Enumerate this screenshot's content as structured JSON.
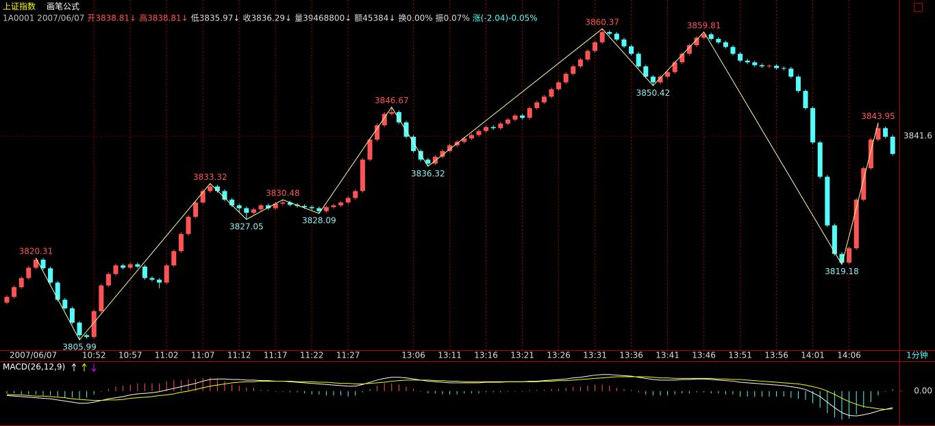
{
  "chart_data": [
    {
      "type": "candlestick",
      "title": "上证指数",
      "subtitle": "画笔公式",
      "info": [
        {
          "text": "1A0001 2007/06/07",
          "color": "#c0c0c0"
        },
        {
          "text": "开3838.81↓",
          "color": "#ff5454"
        },
        {
          "text": "高3838.81↓",
          "color": "#ff5454"
        },
        {
          "text": "低3835.97↓",
          "color": "#dcdcdc"
        },
        {
          "text": "收3836.29↓",
          "color": "#dcdcdc"
        },
        {
          "text": "量39468800↓",
          "color": "#dcdcdc"
        },
        {
          "text": "额45384↓",
          "color": "#dcdcdc"
        },
        {
          "text": "换0.00%",
          "color": "#dcdcdc"
        },
        {
          "text": "振0.07%",
          "color": "#dcdcdc"
        },
        {
          "text": "涨(-2.04)-0.05%",
          "color": "#54fcfc"
        }
      ],
      "categories": [
        "2007/06/07",
        null,
        null,
        null,
        null,
        null,
        null,
        null,
        null,
        null,
        null,
        null,
        "10:52",
        null,
        null,
        null,
        null,
        "10:57",
        null,
        null,
        null,
        null,
        "11:02",
        null,
        null,
        null,
        null,
        "11:07",
        null,
        null,
        null,
        null,
        "11:12",
        null,
        null,
        null,
        null,
        "11:17",
        null,
        null,
        null,
        null,
        "11:22",
        null,
        null,
        null,
        null,
        "11:27",
        null,
        null,
        null,
        null,
        null,
        null,
        null,
        null,
        "13:06",
        null,
        null,
        null,
        null,
        "13:11",
        null,
        null,
        null,
        null,
        "13:16",
        null,
        null,
        null,
        null,
        "13:21",
        null,
        null,
        null,
        null,
        "13:26",
        null,
        null,
        null,
        null,
        "13:31",
        null,
        null,
        null,
        null,
        "13:36",
        null,
        null,
        null,
        null,
        "13:41",
        null,
        null,
        null,
        null,
        "13:46",
        null,
        null,
        null,
        null,
        "13:51",
        null,
        null,
        null,
        null,
        "13:56",
        null,
        null,
        null,
        null,
        "14:01",
        null,
        null,
        null,
        null,
        "14:06",
        null,
        null,
        null,
        null,
        null,
        null
      ],
      "open": [
        3812.5,
        3813.5,
        3815.2,
        3816.8,
        3818.6,
        3820.0,
        3818.5,
        3816.0,
        3813.0,
        3811.5,
        3809.0,
        3806.8,
        3806.5,
        3811.0,
        3815.5,
        3817.5,
        3819.0,
        3818.6,
        3819.2,
        3818.8,
        3816.8,
        3816.5,
        3816.0,
        3819.0,
        3821.5,
        3824.5,
        3827.5,
        3830.0,
        3832.0,
        3832.8,
        3832.0,
        3830.5,
        3829.5,
        3829.0,
        3828.2,
        3828.8,
        3829.5,
        3829.0,
        3829.8,
        3830.0,
        3829.6,
        3829.4,
        3829.2,
        3829.0,
        3828.5,
        3829.2,
        3829.5,
        3830.0,
        3830.8,
        3832.0,
        3837.5,
        3841.0,
        3843.5,
        3845.5,
        3845.8,
        3844.0,
        3841.5,
        3839.0,
        3837.5,
        3836.8,
        3838.0,
        3839.0,
        3840.0,
        3840.6,
        3841.2,
        3841.8,
        3842.5,
        3843.2,
        3843.0,
        3843.8,
        3844.5,
        3845.2,
        3844.8,
        3846.5,
        3847.5,
        3848.5,
        3849.8,
        3851.0,
        3852.5,
        3853.8,
        3855.0,
        3856.5,
        3858.0,
        3859.8,
        3859.5,
        3858.5,
        3857.3,
        3856.0,
        3853.8,
        3852.0,
        3851.0,
        3852.0,
        3852.8,
        3854.5,
        3856.0,
        3857.5,
        3858.8,
        3859.4,
        3858.6,
        3858.0,
        3857.2,
        3856.0,
        3854.8,
        3854.5,
        3854.0,
        3853.8,
        3853.9,
        3853.5,
        3853.4,
        3852.0,
        3849.5,
        3846.5,
        3840.5,
        3834.5,
        3826.0,
        3821.0,
        3819.5,
        3822.0,
        3830.5,
        3836.0,
        3841.0,
        3843.0,
        3841.5
      ],
      "high": [
        3813.8,
        3815.5,
        3817.1,
        3818.9,
        3820.31,
        3820.3,
        3818.8,
        3816.3,
        3813.3,
        3811.8,
        3809.3,
        3807.1,
        3811.3,
        3815.8,
        3817.8,
        3819.3,
        3819.3,
        3819.5,
        3819.5,
        3819.1,
        3817.1,
        3816.8,
        3819.3,
        3821.8,
        3824.8,
        3827.8,
        3830.3,
        3832.3,
        3833.32,
        3833.1,
        3832.3,
        3830.8,
        3829.8,
        3829.3,
        3829.1,
        3829.8,
        3829.8,
        3830.1,
        3830.48,
        3830.3,
        3829.9,
        3829.7,
        3829.5,
        3829.3,
        3829.5,
        3829.8,
        3830.3,
        3831.1,
        3832.3,
        3837.8,
        3841.3,
        3843.8,
        3845.8,
        3846.67,
        3846.1,
        3844.3,
        3841.8,
        3839.3,
        3837.8,
        3838.3,
        3839.3,
        3840.3,
        3840.9,
        3841.5,
        3842.1,
        3842.8,
        3843.5,
        3843.5,
        3844.1,
        3844.8,
        3845.5,
        3845.5,
        3846.8,
        3847.8,
        3848.8,
        3850.1,
        3851.3,
        3852.8,
        3854.1,
        3855.3,
        3856.8,
        3858.3,
        3860.37,
        3860.1,
        3859.8,
        3858.8,
        3857.6,
        3856.3,
        3854.1,
        3852.3,
        3852.3,
        3853.1,
        3854.8,
        3856.3,
        3857.8,
        3859.1,
        3859.81,
        3859.7,
        3858.9,
        3858.3,
        3857.5,
        3856.3,
        3855.1,
        3854.8,
        3854.3,
        3854.2,
        3854.2,
        3853.8,
        3853.7,
        3852.3,
        3849.8,
        3846.8,
        3840.8,
        3834.8,
        3826.3,
        3821.3,
        3822.3,
        3830.8,
        3836.3,
        3841.3,
        3843.95,
        3843.3,
        3841.8
      ],
      "low": [
        3812.2,
        3813.2,
        3814.9,
        3816.5,
        3818.3,
        3818.2,
        3815.7,
        3812.7,
        3811.2,
        3808.7,
        3805.99,
        3806.2,
        3806.2,
        3810.7,
        3815.2,
        3817.2,
        3818.3,
        3818.3,
        3818.5,
        3816.5,
        3816.2,
        3815.0,
        3815.7,
        3818.7,
        3821.2,
        3824.2,
        3827.2,
        3829.7,
        3831.7,
        3831.7,
        3830.2,
        3829.2,
        3828.3,
        3827.05,
        3827.9,
        3828.5,
        3828.7,
        3828.7,
        3829.5,
        3829.3,
        3829.1,
        3828.9,
        3828.7,
        3828.09,
        3828.2,
        3828.9,
        3829.2,
        3829.7,
        3830.5,
        3831.7,
        3837.2,
        3840.7,
        3843.2,
        3845.2,
        3843.7,
        3841.2,
        3838.7,
        3837.2,
        3836.32,
        3836.5,
        3837.7,
        3838.7,
        3839.7,
        3840.3,
        3840.9,
        3841.5,
        3842.2,
        3842.7,
        3842.7,
        3843.5,
        3844.2,
        3844.5,
        3844.5,
        3846.2,
        3847.2,
        3848.2,
        3849.5,
        3850.7,
        3852.2,
        3853.5,
        3854.7,
        3856.2,
        3857.7,
        3859.2,
        3858.2,
        3857.0,
        3855.7,
        3853.5,
        3851.7,
        3850.42,
        3850.7,
        3851.7,
        3852.5,
        3854.2,
        3855.7,
        3857.2,
        3858.5,
        3858.3,
        3857.7,
        3856.9,
        3855.7,
        3854.5,
        3854.2,
        3853.7,
        3853.5,
        3853.5,
        3853.2,
        3853.1,
        3851.7,
        3849.2,
        3846.2,
        3840.2,
        3834.2,
        3825.7,
        3820.7,
        3819.18,
        3819.2,
        3821.7,
        3830.2,
        3835.7,
        3840.7,
        3841.2,
        3838.2
      ],
      "close": [
        3813.5,
        3815.2,
        3816.8,
        3818.6,
        3820.0,
        3818.5,
        3816.0,
        3813.0,
        3811.5,
        3809.0,
        3806.8,
        3806.5,
        3811.0,
        3815.5,
        3817.5,
        3819.0,
        3818.6,
        3819.2,
        3818.8,
        3816.8,
        3816.5,
        3816.0,
        3819.0,
        3821.5,
        3824.5,
        3827.5,
        3830.0,
        3832.0,
        3832.8,
        3832.0,
        3830.5,
        3829.5,
        3829.0,
        3828.2,
        3828.8,
        3829.5,
        3829.0,
        3829.8,
        3830.0,
        3829.6,
        3829.4,
        3829.2,
        3829.0,
        3828.5,
        3829.2,
        3829.5,
        3830.0,
        3830.8,
        3832.0,
        3837.5,
        3841.0,
        3843.5,
        3845.5,
        3845.8,
        3844.0,
        3841.5,
        3839.0,
        3837.5,
        3836.8,
        3838.0,
        3839.0,
        3840.0,
        3840.6,
        3841.2,
        3841.8,
        3842.5,
        3843.2,
        3843.0,
        3843.8,
        3844.5,
        3845.2,
        3844.8,
        3846.5,
        3847.5,
        3848.5,
        3849.8,
        3851.0,
        3852.5,
        3853.8,
        3855.0,
        3856.5,
        3858.0,
        3859.8,
        3859.5,
        3858.5,
        3857.3,
        3856.0,
        3853.8,
        3852.0,
        3851.0,
        3852.0,
        3852.8,
        3854.5,
        3856.0,
        3857.5,
        3858.8,
        3859.4,
        3858.6,
        3858.0,
        3857.2,
        3856.0,
        3854.8,
        3854.5,
        3854.0,
        3853.8,
        3853.9,
        3853.5,
        3853.4,
        3852.0,
        3849.5,
        3846.5,
        3840.5,
        3834.5,
        3826.0,
        3821.0,
        3819.5,
        3822.0,
        3830.5,
        3836.0,
        3841.0,
        3843.0,
        3841.5,
        3838.5
      ],
      "up_color": "#ff5454",
      "down_color": "#54fcfc",
      "ylim": [
        3804.2,
        3865.4
      ],
      "yticks": [
        3841.6
      ],
      "pivots": {
        "index": [
          4,
          10,
          28,
          33,
          38,
          43,
          53,
          58,
          82,
          89,
          96,
          115,
          120
        ],
        "values": [
          3820.31,
          3805.99,
          3833.32,
          3827.05,
          3830.48,
          3828.09,
          3846.67,
          3836.32,
          3860.37,
          3850.42,
          3859.81,
          3819.18,
          3843.95
        ],
        "line_color": "#ffff99",
        "high_color": "#ff5454",
        "low_color": "#8cf0f0"
      },
      "period": "1分钟"
    },
    {
      "type": "macd",
      "title": "MACD(26,12,9)",
      "lines": [
        {
          "color": "#ffffff",
          "values": [
            -0.8,
            -0.9,
            -1.0,
            -1.1,
            -1.2,
            -1.3,
            -1.4,
            -1.6,
            -1.8,
            -2.0,
            -2.2,
            -2.2,
            -2.0,
            -1.7,
            -1.4,
            -1.2,
            -1.0,
            -0.7,
            -0.5,
            -0.4,
            -0.3,
            -0.1,
            0.2,
            0.5,
            0.8,
            1.1,
            1.4,
            1.8,
            2.1,
            2.2,
            2.2,
            2.1,
            2.1,
            2.0,
            2.0,
            1.9,
            1.9,
            1.8,
            1.8,
            1.7,
            1.6,
            1.5,
            1.4,
            1.3,
            1.2,
            1.1,
            1.0,
            0.9,
            0.9,
            1.2,
            1.6,
            2.0,
            2.3,
            2.5,
            2.5,
            2.4,
            2.2,
            2.0,
            1.8,
            1.7,
            1.6,
            1.5,
            1.5,
            1.5,
            1.5,
            1.5,
            1.6,
            1.6,
            1.6,
            1.7,
            1.7,
            1.7,
            1.8,
            1.8,
            1.9,
            2.0,
            2.1,
            2.2,
            2.4,
            2.5,
            2.7,
            2.9,
            3.0,
            3.0,
            2.9,
            2.8,
            2.7,
            2.5,
            2.3,
            2.1,
            2.0,
            2.0,
            2.0,
            2.1,
            2.1,
            2.2,
            2.2,
            2.1,
            2.0,
            1.9,
            1.8,
            1.6,
            1.5,
            1.4,
            1.3,
            1.2,
            1.1,
            1.0,
            0.8,
            0.6,
            0.3,
            -0.3,
            -1.0,
            -2.0,
            -3.0,
            -3.9,
            -4.4,
            -4.5,
            -4.3,
            -4.0,
            -3.6,
            -3.3,
            -3.0
          ]
        },
        {
          "color": "#ffff00",
          "values": [
            -0.6,
            -0.7,
            -0.7,
            -0.8,
            -0.9,
            -0.9,
            -1.0,
            -1.1,
            -1.2,
            -1.4,
            -1.5,
            -1.6,
            -1.7,
            -1.7,
            -1.6,
            -1.6,
            -1.5,
            -1.3,
            -1.2,
            -1.1,
            -1.0,
            -0.8,
            -0.7,
            -0.5,
            -0.2,
            0.0,
            0.3,
            0.6,
            0.9,
            1.1,
            1.3,
            1.5,
            1.6,
            1.7,
            1.7,
            1.8,
            1.8,
            1.8,
            1.8,
            1.8,
            1.7,
            1.7,
            1.7,
            1.6,
            1.6,
            1.5,
            1.4,
            1.4,
            1.3,
            1.3,
            1.4,
            1.5,
            1.6,
            1.8,
            1.9,
            2.0,
            2.0,
            2.0,
            2.0,
            1.9,
            1.9,
            1.8,
            1.8,
            1.7,
            1.7,
            1.7,
            1.7,
            1.7,
            1.7,
            1.7,
            1.7,
            1.7,
            1.7,
            1.7,
            1.8,
            1.8,
            1.9,
            1.9,
            2.0,
            2.1,
            2.2,
            2.3,
            2.4,
            2.5,
            2.6,
            2.6,
            2.6,
            2.6,
            2.6,
            2.5,
            2.4,
            2.4,
            2.3,
            2.3,
            2.3,
            2.3,
            2.3,
            2.3,
            2.2,
            2.2,
            2.1,
            2.1,
            2.0,
            1.9,
            1.8,
            1.7,
            1.6,
            1.5,
            1.4,
            1.3,
            1.1,
            0.8,
            0.5,
            0.0,
            -0.6,
            -1.3,
            -1.9,
            -2.4,
            -2.8,
            -3.0,
            -3.2,
            -3.3,
            -3.2
          ]
        }
      ],
      "bars": {
        "up_color": "#ff5454",
        "down_color": "#54fcfc",
        "values": [
          -0.4,
          -0.4,
          -0.6,
          -0.6,
          -0.6,
          -0.8,
          -0.8,
          -1.0,
          -1.2,
          -1.2,
          -1.4,
          -1.2,
          -0.6,
          0.0,
          0.4,
          0.8,
          1.0,
          1.2,
          1.4,
          1.4,
          1.4,
          1.4,
          1.8,
          2.0,
          2.0,
          2.2,
          2.2,
          2.4,
          2.4,
          2.2,
          1.8,
          1.2,
          1.0,
          0.6,
          0.6,
          0.2,
          0.2,
          0.0,
          0.0,
          -0.2,
          -0.2,
          -0.4,
          -0.6,
          -0.6,
          -0.8,
          -0.8,
          -0.8,
          -1.0,
          -0.8,
          -0.2,
          0.4,
          1.0,
          1.4,
          1.4,
          1.2,
          0.8,
          0.4,
          0.0,
          -0.4,
          -0.4,
          -0.6,
          -0.6,
          -0.6,
          -0.4,
          -0.4,
          -0.4,
          -0.2,
          -0.2,
          -0.2,
          0.0,
          0.0,
          0.0,
          0.2,
          0.2,
          0.2,
          0.4,
          0.4,
          0.6,
          0.8,
          0.8,
          1.0,
          1.2,
          1.2,
          1.0,
          0.6,
          0.4,
          0.2,
          -0.2,
          -0.6,
          -0.8,
          -0.8,
          -0.8,
          -0.6,
          -0.4,
          -0.4,
          -0.2,
          -0.2,
          -0.4,
          -0.4,
          -0.6,
          -0.6,
          -1.0,
          -1.0,
          -1.0,
          -1.0,
          -1.0,
          -1.0,
          -1.0,
          -1.2,
          -1.4,
          -1.6,
          -2.2,
          -3.0,
          -4.0,
          -4.8,
          -5.2,
          -5.0,
          -4.2,
          -3.0,
          -2.0,
          -0.8,
          0.0,
          0.4
        ]
      },
      "ylim": [
        -6.2,
        5.2
      ],
      "yticks": [
        {
          "value": 0,
          "label": "0.00"
        }
      ]
    }
  ]
}
